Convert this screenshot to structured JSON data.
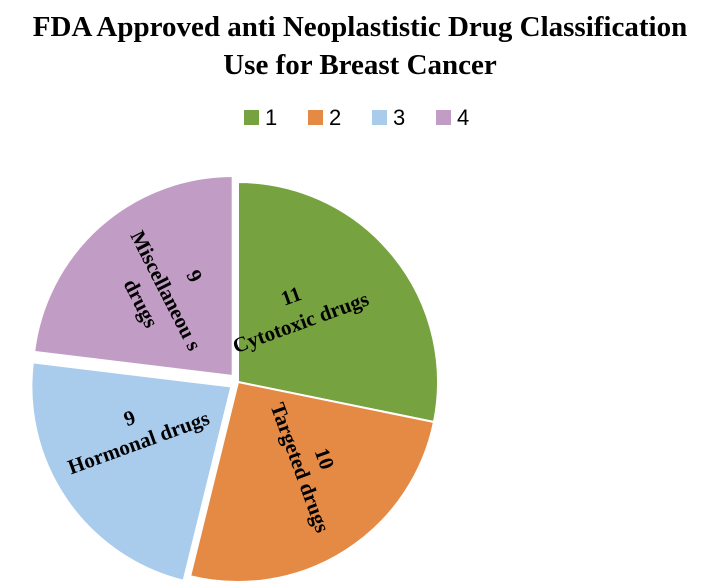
{
  "chart_data": {
    "type": "pie",
    "title": "FDA Approved anti Neoplastistic Drug Classification",
    "subtitle": "Use for Breast Cancer",
    "legend": {
      "placement": "top",
      "entries": [
        "1",
        "2",
        "3",
        "4"
      ]
    },
    "slices": [
      {
        "legend": "1",
        "value": 11,
        "value_label": "11",
        "label": "Cytotoxic drugs",
        "color": "#77a240",
        "exploded": false
      },
      {
        "legend": "2",
        "value": 10,
        "value_label": "10",
        "label": "Targeted drugs",
        "color": "#e58a45",
        "exploded": false
      },
      {
        "legend": "3",
        "value": 9,
        "value_label": "9",
        "label": "Hormonal drugs",
        "color": "#a9cbec",
        "exploded": true
      },
      {
        "legend": "4",
        "value": 9,
        "value_label": "9",
        "label": "Miscellaneous drugs",
        "label_lines": [
          "Miscellaneou s",
          "drugs"
        ],
        "color": "#c19cc5",
        "exploded": true
      }
    ]
  }
}
